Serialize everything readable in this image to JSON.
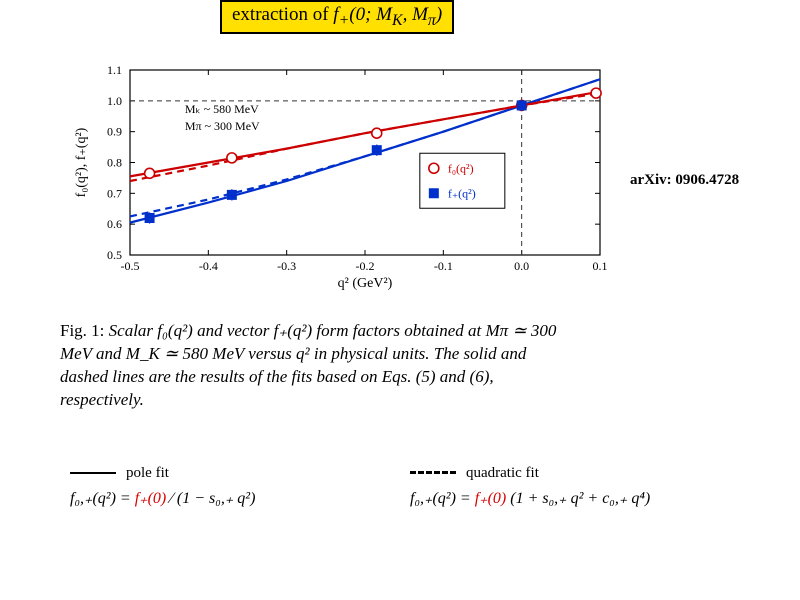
{
  "title": {
    "prefix": "extraction of ",
    "ital": "f",
    "sub": "+",
    "rest": "(0; M",
    "k_sub": "K",
    "mid": ", M",
    "pi_sub": "π",
    "close": ")"
  },
  "arxiv": "arXiv: 0906.4728",
  "chart": {
    "xlim": [
      -0.5,
      0.1
    ],
    "ylim": [
      0.5,
      1.1
    ],
    "xticks": [
      -0.5,
      -0.4,
      -0.3,
      -0.2,
      -0.1,
      0.0,
      0.1
    ],
    "yticks": [
      0.5,
      0.6,
      0.7,
      0.8,
      0.9,
      1.0,
      1.1
    ],
    "xlabel": "q²   (GeV²)",
    "ylabel": "f₀(q²),   f₊(q²)",
    "annot1": "M_K ~ 580 MeV",
    "annot2": "M_π ~ 300 MeV",
    "colors": {
      "f0": "#cc0000",
      "fplus": "#0030cc",
      "axis": "#000000",
      "grid": "#333333",
      "bg": "#ffffff"
    },
    "line_width": 2.2,
    "marker_size": 5,
    "legend": {
      "f0": "f₀(q²)",
      "fplus": "f₊(q²)",
      "f0_marker": "open-circle",
      "fplus_marker": "filled-square"
    },
    "ref_hline": 1.0,
    "ref_vline": 0.0,
    "f0_points": [
      [
        -0.475,
        0.765
      ],
      [
        -0.37,
        0.815
      ],
      [
        -0.185,
        0.895
      ],
      [
        0.0,
        0.985
      ],
      [
        0.095,
        1.025
      ]
    ],
    "fplus_points": [
      [
        -0.475,
        0.62
      ],
      [
        -0.37,
        0.695
      ],
      [
        -0.185,
        0.84
      ],
      [
        0.0,
        0.985
      ]
    ],
    "f0_errbar": 0.013,
    "fplus_errbar": 0.018,
    "f0_solid": [
      [
        -0.5,
        0.755
      ],
      [
        -0.4,
        0.8
      ],
      [
        -0.3,
        0.845
      ],
      [
        -0.2,
        0.895
      ],
      [
        -0.1,
        0.94
      ],
      [
        0.0,
        0.985
      ],
      [
        0.1,
        1.03
      ]
    ],
    "f0_dashed": [
      [
        -0.5,
        0.74
      ],
      [
        -0.4,
        0.79
      ],
      [
        -0.3,
        0.845
      ],
      [
        -0.2,
        0.895
      ],
      [
        -0.1,
        0.94
      ],
      [
        0.0,
        0.985
      ],
      [
        0.1,
        1.025
      ]
    ],
    "fplus_solid": [
      [
        -0.5,
        0.605
      ],
      [
        -0.4,
        0.67
      ],
      [
        -0.3,
        0.74
      ],
      [
        -0.2,
        0.82
      ],
      [
        -0.1,
        0.9
      ],
      [
        0.0,
        0.985
      ],
      [
        0.1,
        1.07
      ]
    ],
    "fplus_dashed": [
      [
        -0.5,
        0.625
      ],
      [
        -0.4,
        0.68
      ],
      [
        -0.3,
        0.745
      ],
      [
        -0.2,
        0.82
      ],
      [
        -0.1,
        0.9
      ],
      [
        0.0,
        0.985
      ],
      [
        0.1,
        1.07
      ]
    ]
  },
  "caption": {
    "fig": "Fig. 1:",
    "text": " Scalar f₀(q²) and vector f₊(q²) form factors obtained at Mπ ≃ 300 MeV and M_K ≃ 580 MeV versus q² in physical units. The solid and dashed lines are the results of the fits based on Eqs. (5) and (6), respectively."
  },
  "fits": {
    "pole_label": "pole fit",
    "quad_label": "quadratic fit",
    "pole_eq_lhs": "f₀,₊(q²) = ",
    "pole_eq_f0": "f₊(0)",
    "pole_eq_rhs": " ∕ (1 − s₀,₊ q²)",
    "quad_eq_lhs": "f₀,₊(q²) = ",
    "quad_eq_f0": "f₊(0)",
    "quad_eq_rhs": " (1 + s₀,₊ q² + c₀,₊ q⁴)"
  }
}
